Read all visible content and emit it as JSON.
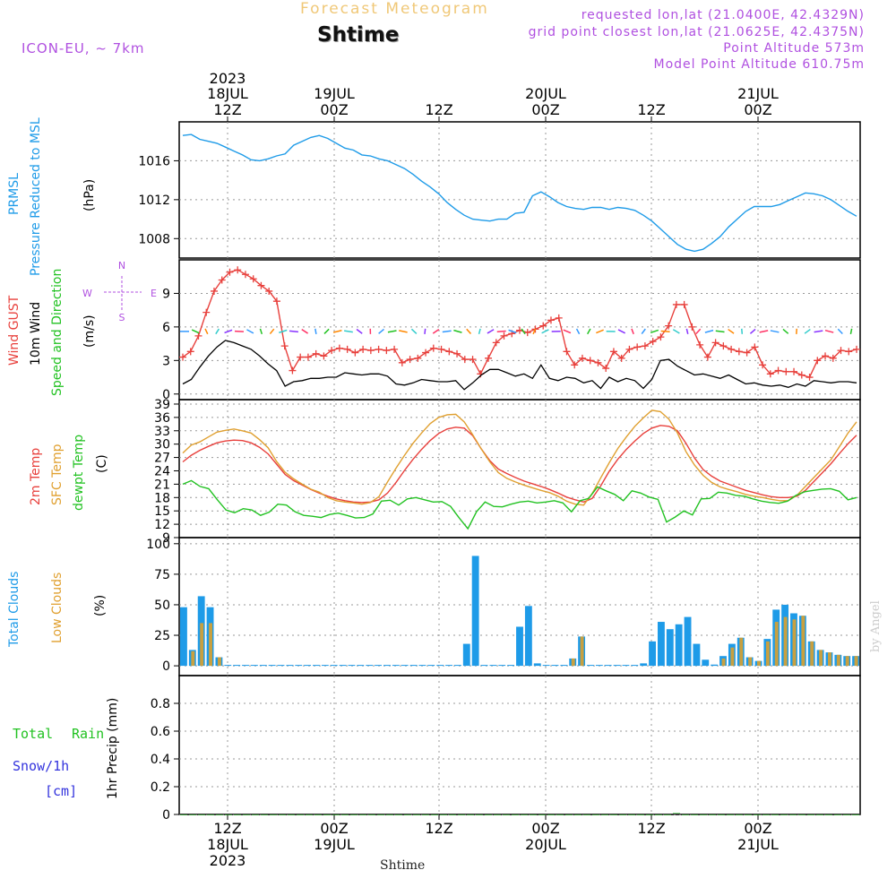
{
  "header": {
    "title": "Forecast Meteogram",
    "location": "Shtime",
    "model": "ICON-EU, ~ 7km",
    "requested": "requested lon,lat (21.0400E, 42.4329N)",
    "gridpoint": "grid point closest lon,lat (21.0625E, 42.4375N)",
    "point_alt": "Point Altitude 573m",
    "model_alt": "Model Point Altitude 610.75m",
    "credit": "by Angel",
    "footer": "Shtime"
  },
  "time_axis": {
    "top_year": "2023",
    "labels": [
      {
        "line1": "18JUL",
        "line2": "12Z"
      },
      {
        "line1": "19JUL",
        "line2": "00Z"
      },
      {
        "line1": "",
        "line2": "12Z"
      },
      {
        "line1": "20JUL",
        "line2": "00Z"
      },
      {
        "line1": "",
        "line2": "12Z"
      },
      {
        "line1": "21JUL",
        "line2": "00Z"
      }
    ],
    "bottom_labels": [
      {
        "line1": "12Z",
        "line2": "18JUL",
        "line3": "2023"
      },
      {
        "line1": "00Z",
        "line2": "19JUL",
        "line3": ""
      },
      {
        "line1": "12Z",
        "line2": "",
        "line3": ""
      },
      {
        "line1": "00Z",
        "line2": "20JUL",
        "line3": ""
      },
      {
        "line1": "12Z",
        "line2": "",
        "line3": ""
      },
      {
        "line1": "00Z",
        "line2": "21JUL",
        "line3": ""
      }
    ]
  },
  "panels": {
    "pressure": {
      "label1": "PRMSL",
      "label2": "Pressure Reduced to MSL",
      "unit": "(hPa)"
    },
    "wind": {
      "label1": "Wind GUST",
      "label2": "10m Wind",
      "label3": "Speed and Direction",
      "unit": "(m/s)",
      "compass": {
        "n": "N",
        "s": "S",
        "w": "W",
        "e": "E"
      }
    },
    "temp": {
      "label1": "2m Temp",
      "label2": "SFC Temp",
      "label3": "dewpt Temp",
      "unit": "(C)"
    },
    "clouds": {
      "label1": "Total Clouds",
      "label2": "Low Clouds",
      "unit": "(%)"
    },
    "precip": {
      "label1": "Total",
      "label2": "Rain",
      "label3": "Snow/1h",
      "label4": "[cm]",
      "unit": "1hr Precip (mm)"
    }
  },
  "colors": {
    "pressure": "#1e9be8",
    "gust": "#e8403c",
    "wind": "#000000",
    "temp2m": "#e8403c",
    "sfc": "#e0a030",
    "dew": "#22c222",
    "total_clouds": "#1e9be8",
    "low_clouds": "#c8a040",
    "rain": "#22c222",
    "snow": "#3333dd",
    "purple": "#b050e0",
    "title": "#f0c878",
    "grid": "#999999"
  },
  "chart_data": [
    {
      "type": "line",
      "x_range_hours": [
        0,
        76
      ],
      "ylim": [
        1006,
        1020
      ],
      "y_ticks": [
        1008,
        1012,
        1016
      ],
      "series": [
        {
          "name": "PRMSL",
          "values": [
            1018.6,
            1018.7,
            1018.2,
            1018,
            1017.8,
            1017.4,
            1017,
            1016.6,
            1016.1,
            1016,
            1016.2,
            1016.5,
            1016.7,
            1017.6,
            1018,
            1018.4,
            1018.6,
            1018.3,
            1017.8,
            1017.3,
            1017.1,
            1016.6,
            1016.5,
            1016.2,
            1016,
            1015.6,
            1015.2,
            1014.6,
            1013.9,
            1013.3,
            1012.6,
            1011.7,
            1011,
            1010.4,
            1010,
            1009.9,
            1009.8,
            1010,
            1010,
            1010.6,
            1010.7,
            1012.4,
            1012.8,
            1012.3,
            1011.7,
            1011.3,
            1011.1,
            1011,
            1011.2,
            1011.2,
            1011,
            1011.2,
            1011.1,
            1010.9,
            1010.4,
            1009.8,
            1009,
            1008.2,
            1007.4,
            1006.9,
            1006.7,
            1006.9,
            1007.5,
            1008.2,
            1009.2,
            1010,
            1010.8,
            1011.3,
            1011.3,
            1011.3,
            1011.5,
            1011.9,
            1012.3,
            1012.7,
            1012.6,
            1012.4,
            1012,
            1011.4,
            1010.8,
            1010.3
          ]
        }
      ]
    },
    {
      "type": "line",
      "ylim": [
        -0.5,
        12
      ],
      "y_ticks": [
        0,
        3,
        6,
        9
      ],
      "series": [
        {
          "name": "Wind GUST",
          "values": [
            3.3,
            3.8,
            5.2,
            7.3,
            9.2,
            10.2,
            10.9,
            11.1,
            10.7,
            10.3,
            9.7,
            9.2,
            8.3,
            4.3,
            2.1,
            3.3,
            3.3,
            3.6,
            3.4,
            3.9,
            4.1,
            4.0,
            3.7,
            4.0,
            3.9,
            4.0,
            3.9,
            4.0,
            2.8,
            3.1,
            3.2,
            3.7,
            4.1,
            4.0,
            3.8,
            3.6,
            3.1,
            3.1,
            1.8,
            3.2,
            4.6,
            5.2,
            5.4,
            5.7,
            5.5,
            5.8,
            6.1,
            6.6,
            6.8,
            3.8,
            2.6,
            3.2,
            3.0,
            2.8,
            2.3,
            3.8,
            3.2,
            4.0,
            4.2,
            4.3,
            4.7,
            5.1,
            6.1,
            8.0,
            8.0,
            6.0,
            4.4,
            3.3,
            4.6,
            4.3,
            4.0,
            3.8,
            3.7,
            4.2,
            2.6,
            1.8,
            2.1,
            2.0,
            2.0,
            1.7,
            1.5,
            3.0,
            3.4,
            3.2,
            3.9,
            3.8,
            4.0
          ]
        },
        {
          "name": "10m Wind",
          "values": [
            0.9,
            1.3,
            2.4,
            3.4,
            4.2,
            4.8,
            4.6,
            4.3,
            4.0,
            3.4,
            2.7,
            2.1,
            0.7,
            1.1,
            1.2,
            1.4,
            1.4,
            1.5,
            1.5,
            1.9,
            1.8,
            1.7,
            1.8,
            1.8,
            1.6,
            0.9,
            0.8,
            1.0,
            1.3,
            1.2,
            1.1,
            1.1,
            1.2,
            0.4,
            1.0,
            1.7,
            2.2,
            2.2,
            1.9,
            1.6,
            1.8,
            1.4,
            2.6,
            1.4,
            1.2,
            1.5,
            1.4,
            1.0,
            1.2,
            0.5,
            1.5,
            1.1,
            1.4,
            1.2,
            0.5,
            1.3,
            3.0,
            3.1,
            2.5,
            2.1,
            1.7,
            1.8,
            1.6,
            1.4,
            1.7,
            1.3,
            0.9,
            1.0,
            0.8,
            0.7,
            0.8,
            0.6,
            0.9,
            0.7,
            1.2,
            1.1,
            1.0,
            1.1,
            1.1,
            1.0
          ]
        }
      ]
    },
    {
      "type": "line",
      "ylim": [
        9,
        40
      ],
      "y_ticks": [
        9,
        12,
        15,
        18,
        21,
        24,
        27,
        30,
        33,
        36,
        39
      ],
      "series": [
        {
          "name": "2m Temp",
          "values": [
            26,
            27.5,
            28.6,
            29.5,
            30.3,
            30.7,
            30.9,
            30.8,
            30.3,
            29.3,
            27.8,
            25.5,
            23.2,
            21.8,
            20.8,
            19.8,
            19.0,
            18.3,
            17.7,
            17.3,
            17.0,
            16.9,
            17.0,
            17.5,
            19.0,
            21.4,
            24.1,
            26.6,
            28.8,
            30.8,
            32.4,
            33.4,
            33.8,
            33.6,
            31.9,
            28.9,
            26.3,
            24.4,
            23.4,
            22.5,
            21.7,
            21.1,
            20.5,
            19.8,
            19.0,
            18.1,
            17.5,
            17.0,
            17.8,
            20.6,
            23.9,
            26.6,
            28.8,
            30.7,
            32.4,
            33.6,
            34.2,
            34.0,
            33.0,
            30.2,
            26.9,
            24.3,
            22.8,
            21.7,
            21.0,
            20.3,
            19.6,
            19.1,
            18.6,
            18.2,
            18.0,
            18.0,
            18.3,
            19.6,
            21.6,
            23.6,
            25.6,
            27.9,
            30.1,
            32.0
          ]
        },
        {
          "name": "SFC Temp",
          "values": [
            28,
            29.8,
            30.5,
            31.6,
            32.7,
            33.1,
            33.4,
            33.0,
            32.5,
            31.0,
            29.2,
            26.1,
            23.7,
            22.2,
            21.0,
            19.9,
            19.2,
            18.0,
            17.3,
            17.0,
            16.8,
            16.5,
            16.9,
            18.2,
            21.5,
            24.6,
            27.5,
            30.2,
            32.5,
            34.6,
            36.0,
            36.6,
            36.7,
            35.0,
            32.1,
            28.9,
            26.0,
            23.6,
            22.3,
            21.5,
            20.8,
            20.2,
            19.6,
            19.1,
            18.3,
            17.2,
            16.5,
            16.3,
            18.9,
            22.4,
            25.8,
            29.0,
            31.6,
            34.0,
            35.9,
            37.6,
            37.3,
            35.6,
            32.5,
            28.3,
            25.3,
            23.0,
            21.4,
            20.4,
            19.8,
            19.3,
            18.7,
            18.3,
            18.0,
            17.6,
            17.3,
            17.3,
            18.5,
            20.5,
            22.5,
            24.5,
            26.5,
            29.5,
            32.5,
            35.0
          ]
        },
        {
          "name": "dewpt Temp",
          "values": [
            21,
            21.8,
            20.5,
            20.0,
            17.5,
            15.2,
            14.6,
            15.5,
            15.2,
            14.0,
            14.7,
            16.5,
            16.3,
            14.8,
            14.0,
            13.8,
            13.5,
            14.2,
            14.5,
            14.0,
            13.4,
            13.5,
            14.3,
            17.2,
            17.4,
            16.3,
            17.7,
            18.0,
            17.5,
            17.0,
            17.1,
            16.0,
            13.4,
            11.0,
            14.8,
            17.0,
            16.0,
            15.9,
            16.5,
            17.0,
            17.2,
            16.8,
            17.0,
            17.3,
            16.8,
            14.8,
            17.3,
            17.8,
            20.4,
            19.5,
            18.7,
            17.3,
            19.5,
            19.0,
            18.1,
            17.6,
            12.5,
            13.6,
            15.0,
            14.1,
            17.7,
            17.8,
            19.2,
            19.0,
            18.5,
            18.3,
            17.7,
            17.2,
            16.9,
            16.7,
            17.2,
            18.5,
            19.3,
            19.6,
            19.9,
            20.0,
            19.4,
            17.5,
            18.0
          ]
        }
      ]
    },
    {
      "type": "bar",
      "ylim": [
        -8,
        105
      ],
      "y_ticks": [
        0,
        25,
        50,
        75,
        100
      ],
      "series": [
        {
          "name": "Total Clouds",
          "values": [
            48,
            13,
            57,
            48,
            7,
            0,
            0,
            0,
            0,
            0,
            0,
            0,
            0,
            0,
            0,
            0,
            0,
            0,
            0,
            0,
            0,
            0,
            0,
            0,
            0,
            0,
            0,
            0,
            0,
            0,
            0,
            0,
            18,
            90,
            0,
            0,
            0,
            0,
            32,
            49,
            2,
            0,
            0,
            0,
            6,
            24,
            0,
            0,
            0,
            0,
            0,
            0,
            2,
            20,
            36,
            30,
            34,
            40,
            18,
            5,
            1,
            8,
            18,
            23,
            7,
            4,
            22,
            46,
            50,
            43,
            41,
            20,
            13,
            11,
            9,
            8,
            8
          ]
        },
        {
          "name": "Low Clouds",
          "values": [
            0,
            12,
            35,
            35,
            7,
            0,
            0,
            0,
            0,
            0,
            0,
            0,
            0,
            0,
            0,
            0,
            0,
            0,
            0,
            0,
            0,
            0,
            0,
            0,
            0,
            0,
            0,
            0,
            0,
            0,
            0,
            0,
            0,
            0,
            0,
            0,
            0,
            0,
            0,
            0,
            0,
            0,
            0,
            0,
            6,
            24,
            0,
            0,
            0,
            0,
            0,
            0,
            0,
            0,
            0,
            0,
            0,
            0,
            0,
            0,
            0,
            6,
            15,
            23,
            7,
            4,
            20,
            36,
            40,
            38,
            41,
            20,
            13,
            11,
            9,
            8,
            8
          ]
        }
      ]
    },
    {
      "type": "bar",
      "ylim": [
        0,
        1.0
      ],
      "y_ticks": [
        0,
        0.2,
        0.4,
        0.6,
        0.8
      ],
      "series": [
        {
          "name": "Total Rain",
          "values": [
            0,
            0,
            0,
            0,
            0,
            0,
            0,
            0,
            0,
            0,
            0,
            0,
            0,
            0,
            0,
            0,
            0,
            0,
            0,
            0,
            0,
            0,
            0,
            0,
            0,
            0,
            0,
            0,
            0,
            0,
            0,
            0,
            0,
            0,
            0,
            0,
            0,
            0,
            0,
            0,
            0,
            0,
            0,
            0,
            0,
            0,
            0,
            0,
            0,
            0,
            0,
            0,
            0,
            0,
            0,
            0.01,
            0,
            0,
            0,
            0,
            0,
            0,
            0,
            0,
            0,
            0,
            0,
            0,
            0,
            0,
            0,
            0,
            0,
            0,
            0,
            0
          ]
        },
        {
          "name": "Snow/1h",
          "values": []
        }
      ]
    }
  ]
}
